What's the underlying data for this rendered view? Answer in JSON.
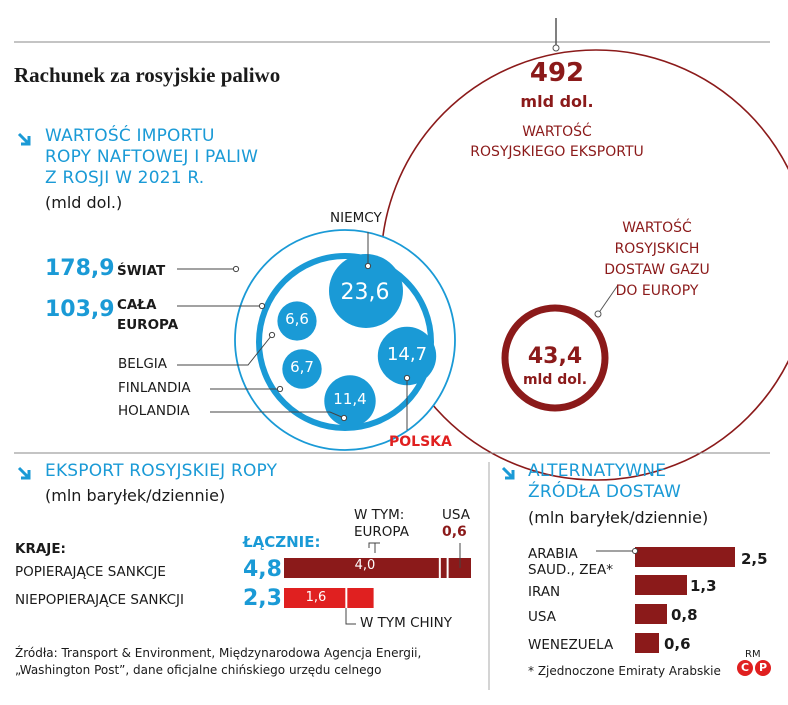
{
  "title": "Rachunek za rosyjskie paliwo",
  "colors": {
    "blue": "#1a9ad6",
    "maroon": "#8b1a1a",
    "red": "#e02020",
    "text": "#1a1a1a"
  },
  "export_total": {
    "value": "492",
    "unit": "mld dol.",
    "label_line1": "WARTOŚĆ",
    "label_line2": "ROSYJSKIEGO EKSPORTU"
  },
  "gas": {
    "label_lines": [
      "WARTOŚĆ",
      "ROSYJSKICH",
      "DOSTAW GAZU",
      "DO EUROPY"
    ],
    "value": "43,4",
    "unit": "mld dol."
  },
  "import_section": {
    "heading_lines": [
      "WARTOŚĆ IMPORTU",
      "ROPY NAFTOWEJ I PALIW",
      "Z ROSJI W 2021 R."
    ],
    "unit": "(mld dol.)",
    "world_value": "178,9",
    "world_label": "ŚWIAT",
    "europe_value": "103,9",
    "europe_label_line1": "CAŁA",
    "europe_label_line2": "EUROPA",
    "countries": [
      {
        "name": "NIEMCY",
        "value": "23,6"
      },
      {
        "name": "POLSKA",
        "value": "14,7"
      },
      {
        "name": "BELGIA",
        "value": "6,6"
      },
      {
        "name": "FINLANDIA",
        "value": "6,7"
      },
      {
        "name": "HOLANDIA",
        "value": "11,4"
      }
    ]
  },
  "oil_export": {
    "heading": "EKSPORT ROSYJSKIEJ ROPY",
    "unit": "(mln baryłek/dziennie)",
    "countries_header": "KRAJE:",
    "total_header": "ŁĄCZNIE:",
    "europe_header_line1": "W TYM:",
    "europe_header_line2": "EUROPA",
    "usa_header": "USA",
    "usa_value": "0,6",
    "china_label": "W TYM CHINY",
    "rows": [
      {
        "label": "POPIERAJĄCE SANKCJE",
        "total": "4,8",
        "part": "4,0"
      },
      {
        "label": "NIEPOPIERAJĄCE SANKCJI",
        "total": "2,3",
        "part": "1,6"
      }
    ]
  },
  "chart_data": [
    {
      "type": "bubble",
      "title": "WARTOŚĆ IMPORTU ROPY NAFTOWEJ I PALIW Z ROSJI W 2021 R.",
      "unit": "mld dol.",
      "categories": [
        "ŚWIAT",
        "CAŁA EUROPA",
        "NIEMCY",
        "POLSKA",
        "BELGIA",
        "FINLANDIA",
        "HOLANDIA"
      ],
      "values": [
        178.9,
        103.9,
        23.6,
        14.7,
        6.6,
        6.7,
        11.4
      ]
    },
    {
      "type": "bubble",
      "categories": [
        "WARTOŚĆ ROSYJSKIEGO EKSPORTU",
        "WARTOŚĆ ROSYJSKICH DOSTAW GAZU DO EUROPY"
      ],
      "unit": "mld dol.",
      "values": [
        492,
        43.4
      ]
    },
    {
      "type": "bar",
      "title": "EKSPORT ROSYJSKIEJ ROPY",
      "unit": "mln baryłek/dziennie",
      "categories": [
        "POPIERAJĄCE SANKCJE",
        "NIEPOPIERAJĄCE SANKCJI"
      ],
      "series": [
        {
          "name": "ŁĄCZNIE",
          "values": [
            4.8,
            2.3
          ]
        },
        {
          "name": "W TYM: EUROPA",
          "values": [
            4.0,
            null
          ]
        },
        {
          "name": "USA",
          "values": [
            0.6,
            null
          ]
        },
        {
          "name": "W TYM CHINY",
          "values": [
            null,
            1.6
          ]
        }
      ],
      "xlim": [
        0,
        4.8
      ]
    },
    {
      "type": "bar",
      "orientation": "horizontal",
      "title": "ALTERNATYWNE ŹRÓDŁA DOSTAW",
      "unit": "mln baryłek/dziennie",
      "categories": [
        "ARABIA SAUD., ZEA*",
        "IRAN",
        "USA",
        "WENEZUELA"
      ],
      "category_lines": [
        [
          "ARABIA",
          "SAUD., ZEA*"
        ],
        [
          "IRAN"
        ],
        [
          "USA"
        ],
        [
          "WENEZUELA"
        ]
      ],
      "values": [
        2.5,
        1.3,
        0.8,
        0.6
      ],
      "value_labels": [
        "2,5",
        "1,3",
        "0,8",
        "0,6"
      ],
      "xlim": [
        0,
        2.5
      ]
    }
  ],
  "alt_sources": {
    "heading_line1": "ALTERNATYWNE",
    "heading_line2": "ŹRÓDŁA DOSTAW",
    "unit": "(mln baryłek/dziennie)"
  },
  "sources_lines": [
    "Źródła: Transport & Environment, Międzynarodowa Agencja Energii,",
    "„Washington Post”, dane oficjalne chińskiego urzędu celnego"
  ],
  "footnote": "* Zjednoczone Emiraty Arabskie",
  "credit_rm": "RM",
  "credit_c": "C",
  "credit_p": "P"
}
